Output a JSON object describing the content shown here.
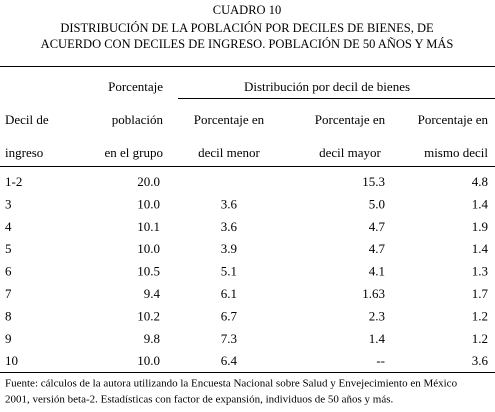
{
  "header": {
    "label": "CUADRO 10",
    "title": [
      "DISTRIBUCIÓN DE LA POBLACIÓN POR DECILES DE BIENES, DE",
      "ACUERDO CON DECILES DE INGRESO. POBLACIÓN DE 50 AÑOS Y MÁS"
    ]
  },
  "table": {
    "group_header": "Distribución por decil de bienes",
    "columns": [
      [
        "Decil de",
        "ingreso"
      ],
      [
        "Porcentaje",
        "población",
        "en el grupo"
      ],
      [
        "Porcentaje en",
        "decil menor"
      ],
      [
        "Porcentaje en",
        "decil mayor"
      ],
      [
        "Porcentaje en",
        "mismo decil"
      ]
    ],
    "rows": [
      [
        "1-2",
        "20.0",
        null,
        "15.3",
        "4.8"
      ],
      [
        "3",
        "10.0",
        "3.6",
        "5.0",
        "1.4"
      ],
      [
        "4",
        "10.1",
        "3.6",
        "4.7",
        "1.9"
      ],
      [
        "5",
        "10.0",
        "3.9",
        "4.7",
        "1.4"
      ],
      [
        "6",
        "10.5",
        "5.1",
        "4.1",
        "1.3"
      ],
      [
        "7",
        "9.4",
        "6.1",
        "1.63",
        "1.7"
      ],
      [
        "8",
        "10.2",
        "6.7",
        "2.3",
        "1.2"
      ],
      [
        "9",
        "9.8",
        "7.3",
        "1.4",
        "1.2"
      ],
      [
        "10",
        "10.0",
        "6.4",
        "--",
        "3.6"
      ]
    ]
  },
  "footnote": [
    "Fuente: cálculos de la autora utilizando la Encuesta Nacional sobre Salud y Envejecimiento en México",
    "2001, versión beta-2. Estadísticas con factor de expansión, individuos de 50 años y más."
  ]
}
